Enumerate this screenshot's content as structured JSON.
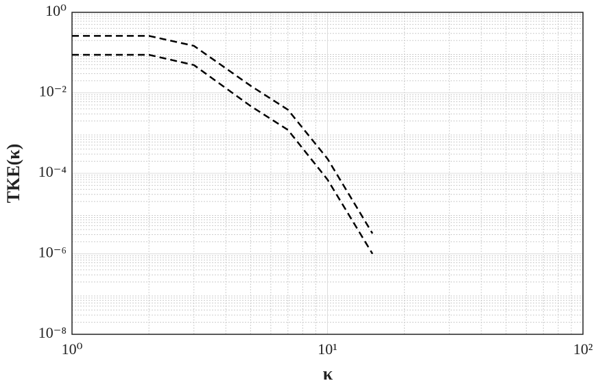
{
  "chart_data": {
    "type": "line",
    "xlabel": "κ",
    "ylabel": "TKE(κ)",
    "x": [
      1,
      2,
      3,
      5,
      7,
      10,
      15
    ],
    "series": [
      {
        "color": "#000000",
        "values": [
          0.26,
          0.26,
          0.147,
          0.015,
          0.0038,
          0.00023,
          3.2e-06
        ]
      },
      {
        "color": "#000000",
        "values": [
          0.088,
          0.088,
          0.049,
          0.0047,
          0.0012,
          7e-05,
          1e-06
        ]
      }
    ],
    "xlim": [
      1,
      100
    ],
    "ylim": [
      1e-08,
      1
    ],
    "xscale": "log",
    "yscale": "log",
    "grid": true,
    "line_style": "dashed",
    "xticks": [
      {
        "value": 1,
        "label": "10⁰"
      },
      {
        "value": 10,
        "label": "10¹"
      },
      {
        "value": 100,
        "label": "10²"
      }
    ],
    "yticks": [
      {
        "value": 1e-08,
        "label": "10⁻⁸"
      },
      {
        "value": 1e-06,
        "label": "10⁻⁶"
      },
      {
        "value": 0.0001,
        "label": "10⁻⁴"
      },
      {
        "value": 0.01,
        "label": "10⁻²"
      },
      {
        "value": 1,
        "label": "10⁰"
      }
    ]
  }
}
